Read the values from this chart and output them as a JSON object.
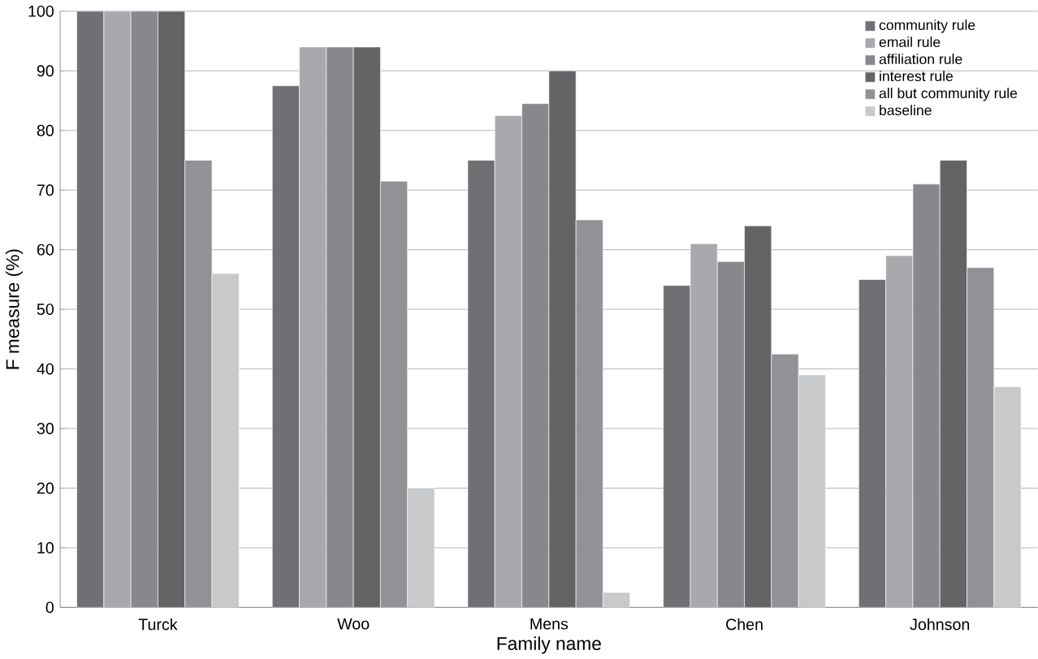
{
  "chart_data": {
    "type": "bar",
    "xlabel": "Family name",
    "ylabel": "F measure (%)",
    "categories": [
      "Turck",
      "Woo",
      "Mens",
      "Chen",
      "Johnson"
    ],
    "series": [
      {
        "name": "community rule",
        "color": "#707074",
        "values": [
          100,
          87.5,
          75,
          54,
          55
        ]
      },
      {
        "name": "email rule",
        "color": "#a9a9ad",
        "values": [
          100,
          94,
          82.5,
          61,
          59
        ]
      },
      {
        "name": "affiliation rule",
        "color": "#88888c",
        "values": [
          100,
          94,
          84.5,
          58,
          71
        ]
      },
      {
        "name": "interest rule",
        "color": "#646466",
        "values": [
          100,
          94,
          90,
          64,
          75
        ]
      },
      {
        "name": "all but community rule",
        "color": "#929296",
        "values": [
          75,
          71.5,
          65,
          42.5,
          57
        ]
      },
      {
        "name": "baseline",
        "color": "#c8c9cb",
        "values": [
          56,
          20,
          2.5,
          39,
          37
        ]
      }
    ],
    "ylim": [
      0,
      100
    ],
    "yticks": [
      0,
      10,
      20,
      30,
      40,
      50,
      60,
      70,
      80,
      90,
      100
    ],
    "grid": "y",
    "legend": "top right"
  }
}
